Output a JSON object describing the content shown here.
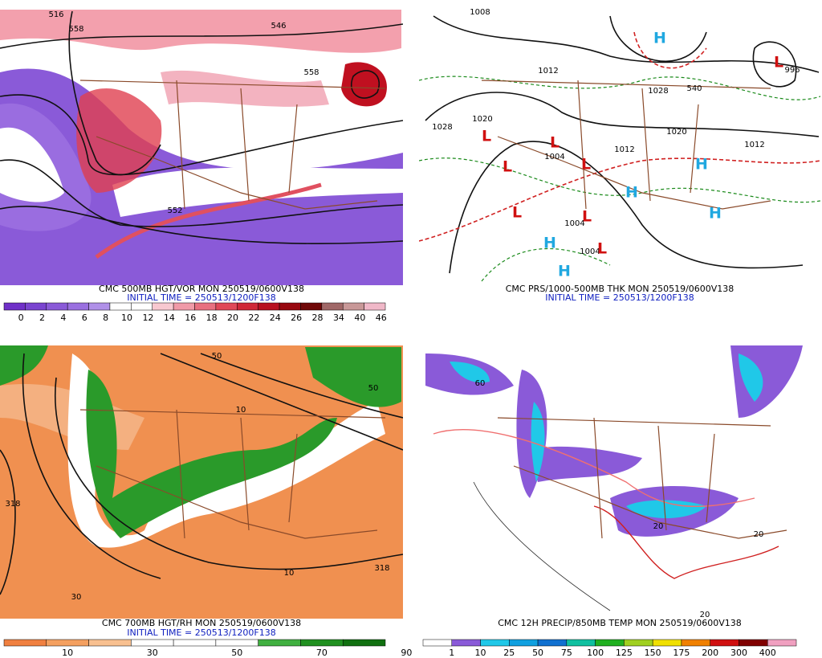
{
  "panels": [
    {
      "caption": "CMC 500MB HGT/VOR MON 250519/0600V138",
      "init": "INITIAL TIME = 250513/1200F138",
      "legend": {
        "labels": [
          "0",
          "2",
          "4",
          "6",
          "8",
          "10",
          "12",
          "14",
          "16",
          "18",
          "20",
          "22",
          "24",
          "26",
          "28",
          "34",
          "40",
          "46"
        ],
        "colors": [
          "#7030c8",
          "#7a44d0",
          "#8a5ad8",
          "#9a70e0",
          "#b090e8",
          "#ffffff",
          "#ffffff",
          "#f8c8d0",
          "#f09aa8",
          "#e87080",
          "#e04858",
          "#d02838",
          "#b81020",
          "#980810",
          "#700808",
          "#a06868",
          "#c89898",
          "#f0b8c8"
        ]
      },
      "labels": [
        "516",
        "558",
        "546",
        "558",
        "552"
      ]
    },
    {
      "caption": "CMC PRS/1000-500MB THK MON 250519/0600V138",
      "init": "INITIAL TIME = 250513/1200F138",
      "labels": [
        "1008",
        "1028",
        "1020",
        "1012",
        "1004",
        "1012",
        "1020",
        "1028",
        "540",
        "996",
        "1004",
        "1004",
        "1012"
      ],
      "highs": [
        "H",
        "H",
        "H",
        "H",
        "H",
        "H"
      ],
      "lows": [
        "L",
        "L",
        "L",
        "L",
        "L",
        "L",
        "L",
        "L"
      ]
    },
    {
      "caption": "CMC 700MB HGT/RH MON 250519/0600V138",
      "init": "INITIAL TIME = 250513/1200F138",
      "legend": {
        "labels": [
          "10",
          "30",
          "50",
          "70",
          "90"
        ],
        "colors": [
          "#f08040",
          "#f4a060",
          "#f8c090",
          "#ffffff",
          "#ffffff",
          "#ffffff",
          "#40b040",
          "#209020",
          "#107010"
        ]
      },
      "labels": [
        "318",
        "318",
        "10",
        "30",
        "50",
        "10",
        "50"
      ]
    },
    {
      "caption": "CMC 12H PRECIP/850MB TEMP MON 250519/0600V138",
      "legend": {
        "labels": [
          "1",
          "10",
          "25",
          "50",
          "75",
          "100",
          "125",
          "150",
          "175",
          "200",
          "300",
          "400"
        ],
        "colors": [
          "#ffffff",
          "#8a5ad8",
          "#20c8e8",
          "#10a0e0",
          "#1070d0",
          "#10c0a0",
          "#20b020",
          "#a0d020",
          "#f0e000",
          "#f08000",
          "#d01010",
          "#800000",
          "#f0a0c0"
        ]
      },
      "labels": [
        "20",
        "20",
        "20",
        "60"
      ]
    }
  ]
}
